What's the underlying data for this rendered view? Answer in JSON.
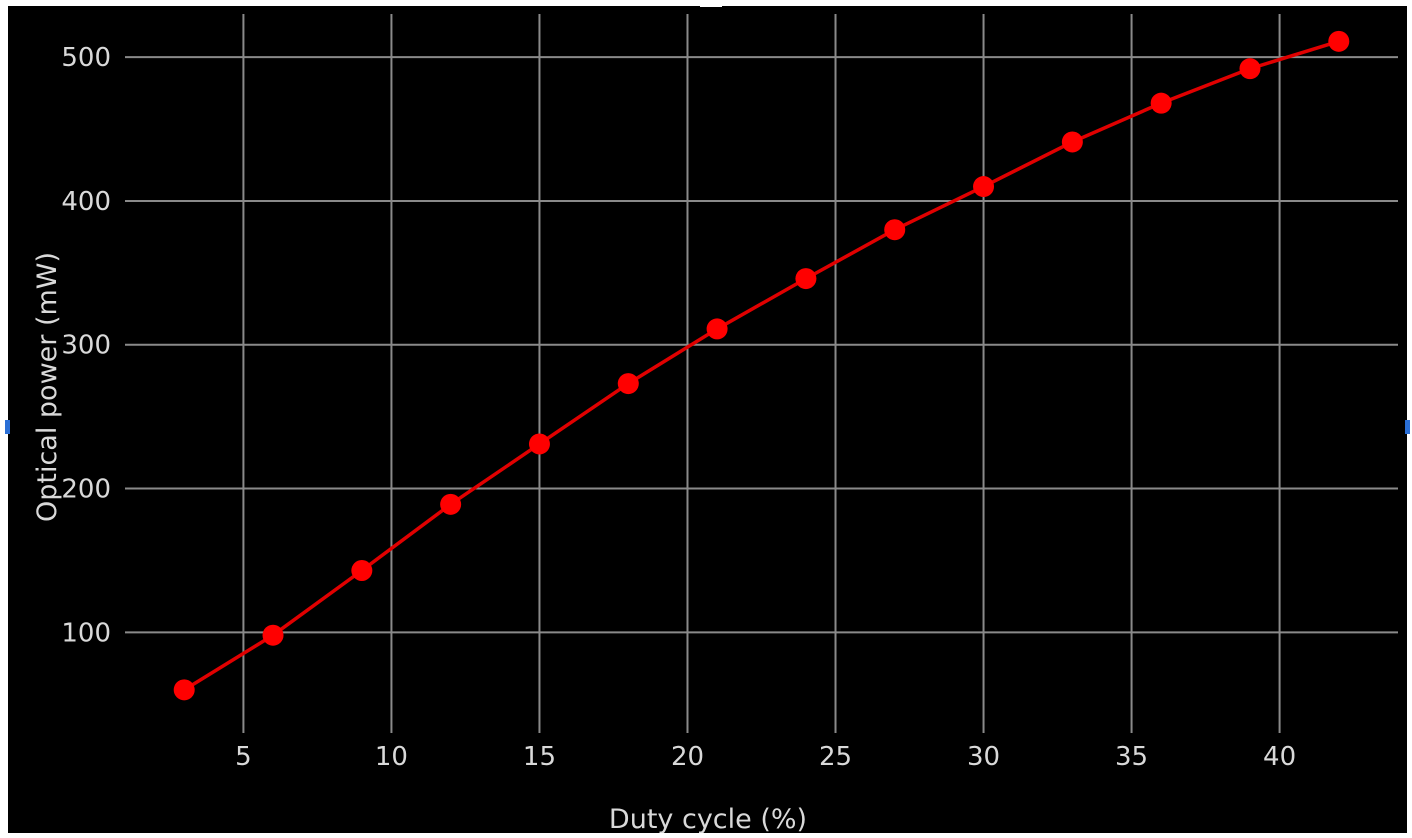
{
  "chart_data": {
    "type": "line",
    "title": "",
    "xlabel": "Duty cycle (%)",
    "ylabel": "Optical power (mW)",
    "xlim": [
      1,
      44
    ],
    "ylim": [
      30,
      530
    ],
    "x_ticks": [
      5,
      10,
      15,
      20,
      25,
      30,
      35,
      40
    ],
    "y_ticks": [
      100,
      200,
      300,
      400,
      500
    ],
    "grid": true,
    "background": "#000000",
    "line_color": "#e00000",
    "marker": "circle",
    "x": [
      3,
      6,
      9,
      12,
      15,
      18,
      21,
      24,
      27,
      30,
      33,
      36,
      39,
      42
    ],
    "y": [
      60,
      98,
      143,
      189,
      231,
      273,
      311,
      346,
      380,
      410,
      441,
      468,
      492,
      511
    ]
  }
}
